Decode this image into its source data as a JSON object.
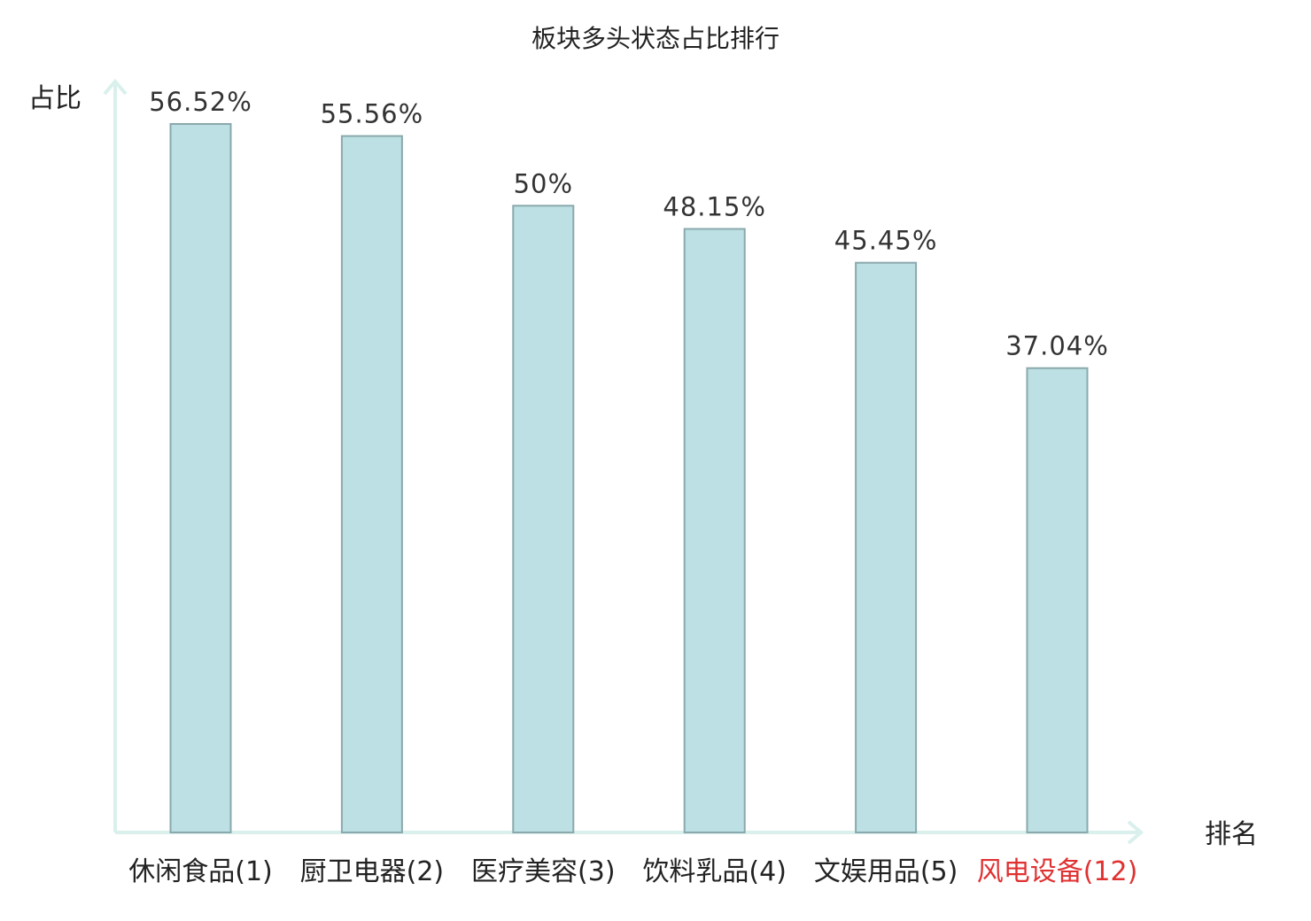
{
  "chart_data": {
    "type": "bar",
    "title": "板块多头状态占比排行",
    "xlabel": "排名",
    "ylabel": "占比",
    "categories": [
      "休闲食品(1)",
      "厨卫电器(2)",
      "医疗美容(3)",
      "饮料乳品(4)",
      "文娱用品(5)",
      "风电设备(12)"
    ],
    "values": [
      56.52,
      55.56,
      50,
      48.15,
      45.45,
      37.04
    ],
    "value_labels": [
      "56.52%",
      "55.56%",
      "50%",
      "48.15%",
      "45.45%",
      "37.04%"
    ],
    "highlight_index": 5,
    "ylim": [
      0,
      56.52
    ],
    "grid": false,
    "colors": {
      "bar_fill": "#bce0e3",
      "bar_stroke": "#8aa9ad",
      "axis": "#d9f0ec",
      "highlight_text": "#e03131",
      "text": "#222222"
    }
  }
}
